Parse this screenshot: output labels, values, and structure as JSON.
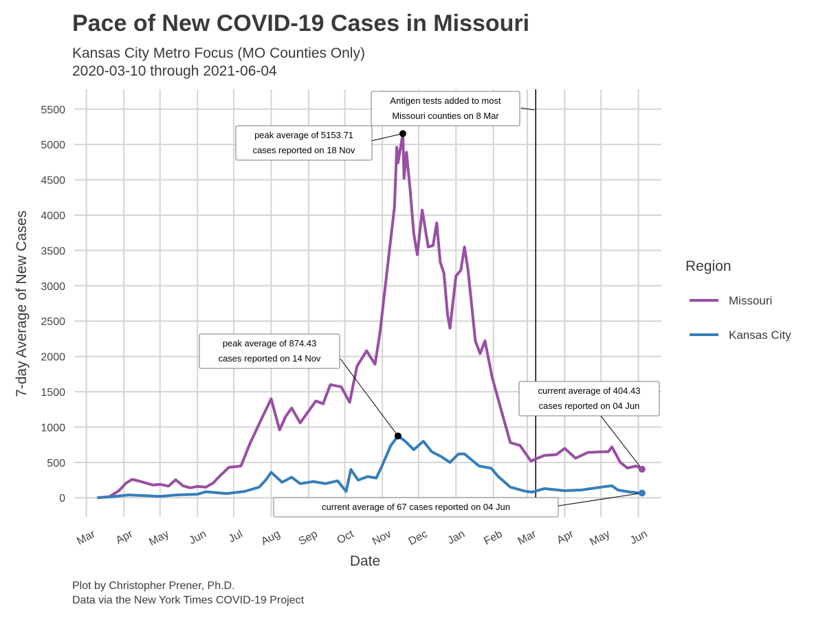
{
  "title": "Pace of New COVID-19 Cases in Missouri",
  "subtitle_1": "Kansas City Metro Focus (MO Counties Only)",
  "subtitle_2": "2020-03-10 through 2021-06-04",
  "caption_1": "Plot by Christopher Prener, Ph.D.",
  "caption_2": "Data via the New York Times COVID-19 Project",
  "colors": {
    "missouri": "#984ea3",
    "kansas_city": "#377eb8"
  },
  "chart_data": {
    "type": "line",
    "title": "Pace of New COVID-19 Cases in Missouri",
    "xlabel": "Date",
    "ylabel": "7-day Average of New Cases",
    "ylim": [
      -270,
      5780
    ],
    "xlim": [
      "2020-02-20",
      "2021-06-20"
    ],
    "grid": true,
    "legend_position": "right",
    "legend_title": "Region",
    "y_ticks": [
      0,
      500,
      1000,
      1500,
      2000,
      2500,
      3000,
      3500,
      4000,
      4500,
      5000,
      5500
    ],
    "x_ticks": [
      {
        "date": "2020-03-01",
        "label": "Mar"
      },
      {
        "date": "2020-04-01",
        "label": "Apr"
      },
      {
        "date": "2020-05-01",
        "label": "May"
      },
      {
        "date": "2020-06-01",
        "label": "Jun"
      },
      {
        "date": "2020-07-01",
        "label": "Jul"
      },
      {
        "date": "2020-08-01",
        "label": "Aug"
      },
      {
        "date": "2020-09-01",
        "label": "Sep"
      },
      {
        "date": "2020-10-01",
        "label": "Oct"
      },
      {
        "date": "2020-11-01",
        "label": "Nov"
      },
      {
        "date": "2020-12-01",
        "label": "Dec"
      },
      {
        "date": "2021-01-01",
        "label": "Jan"
      },
      {
        "date": "2021-02-01",
        "label": "Feb"
      },
      {
        "date": "2021-03-01",
        "label": "Mar"
      },
      {
        "date": "2021-04-01",
        "label": "Apr"
      },
      {
        "date": "2021-05-01",
        "label": "May"
      },
      {
        "date": "2021-06-01",
        "label": "Jun"
      }
    ],
    "series": [
      {
        "name": "Missouri",
        "key": "missouri",
        "points": [
          [
            "2020-03-10",
            0
          ],
          [
            "2020-03-20",
            15
          ],
          [
            "2020-03-28",
            100
          ],
          [
            "2020-04-03",
            210
          ],
          [
            "2020-04-08",
            260
          ],
          [
            "2020-04-15",
            230
          ],
          [
            "2020-04-25",
            180
          ],
          [
            "2020-05-01",
            190
          ],
          [
            "2020-05-08",
            165
          ],
          [
            "2020-05-14",
            255
          ],
          [
            "2020-05-20",
            170
          ],
          [
            "2020-05-26",
            140
          ],
          [
            "2020-06-01",
            160
          ],
          [
            "2020-06-08",
            150
          ],
          [
            "2020-06-14",
            210
          ],
          [
            "2020-06-19",
            300
          ],
          [
            "2020-06-27",
            430
          ],
          [
            "2020-07-07",
            450
          ],
          [
            "2020-07-14",
            750
          ],
          [
            "2020-07-23",
            1080
          ],
          [
            "2020-08-01",
            1400
          ],
          [
            "2020-08-08",
            960
          ],
          [
            "2020-08-13",
            1150
          ],
          [
            "2020-08-18",
            1270
          ],
          [
            "2020-08-25",
            1060
          ],
          [
            "2020-09-07",
            1370
          ],
          [
            "2020-09-13",
            1330
          ],
          [
            "2020-09-19",
            1600
          ],
          [
            "2020-09-28",
            1570
          ],
          [
            "2020-10-05",
            1350
          ],
          [
            "2020-10-11",
            1860
          ],
          [
            "2020-10-19",
            2080
          ],
          [
            "2020-10-26",
            1890
          ],
          [
            "2020-10-30",
            2330
          ],
          [
            "2020-11-06",
            3370
          ],
          [
            "2020-11-11",
            4110
          ],
          [
            "2020-11-13",
            4960
          ],
          [
            "2020-11-14",
            4740
          ],
          [
            "2020-11-18",
            5153.71
          ],
          [
            "2020-11-19",
            4520
          ],
          [
            "2020-11-21",
            4890
          ],
          [
            "2020-11-24",
            4370
          ],
          [
            "2020-11-27",
            3740
          ],
          [
            "2020-11-30",
            3440
          ],
          [
            "2020-12-04",
            4070
          ],
          [
            "2020-12-09",
            3550
          ],
          [
            "2020-12-13",
            3570
          ],
          [
            "2020-12-16",
            3890
          ],
          [
            "2020-12-19",
            3330
          ],
          [
            "2020-12-22",
            3180
          ],
          [
            "2020-12-25",
            2590
          ],
          [
            "2020-12-27",
            2400
          ],
          [
            "2021-01-01",
            3140
          ],
          [
            "2021-01-05",
            3220
          ],
          [
            "2021-01-08",
            3550
          ],
          [
            "2021-01-11",
            3220
          ],
          [
            "2021-01-17",
            2220
          ],
          [
            "2021-01-21",
            2040
          ],
          [
            "2021-01-25",
            2220
          ],
          [
            "2021-01-31",
            1700
          ],
          [
            "2021-02-06",
            1330
          ],
          [
            "2021-02-12",
            960
          ],
          [
            "2021-02-15",
            780
          ],
          [
            "2021-02-23",
            740
          ],
          [
            "2021-03-04",
            520
          ],
          [
            "2021-03-15",
            600
          ],
          [
            "2021-03-25",
            610
          ],
          [
            "2021-04-01",
            700
          ],
          [
            "2021-04-10",
            560
          ],
          [
            "2021-04-20",
            640
          ],
          [
            "2021-05-01",
            650
          ],
          [
            "2021-05-07",
            650
          ],
          [
            "2021-05-10",
            720
          ],
          [
            "2021-05-17",
            500
          ],
          [
            "2021-05-23",
            420
          ],
          [
            "2021-05-30",
            450
          ],
          [
            "2021-06-04",
            404.43
          ]
        ]
      },
      {
        "name": "Kansas City",
        "key": "kansas_city",
        "points": [
          [
            "2020-03-10",
            0
          ],
          [
            "2020-03-25",
            20
          ],
          [
            "2020-04-05",
            40
          ],
          [
            "2020-04-20",
            30
          ],
          [
            "2020-05-01",
            20
          ],
          [
            "2020-05-15",
            40
          ],
          [
            "2020-06-01",
            50
          ],
          [
            "2020-06-08",
            85
          ],
          [
            "2020-06-25",
            60
          ],
          [
            "2020-07-10",
            90
          ],
          [
            "2020-07-22",
            150
          ],
          [
            "2020-07-28",
            260
          ],
          [
            "2020-08-01",
            360
          ],
          [
            "2020-08-10",
            220
          ],
          [
            "2020-08-18",
            290
          ],
          [
            "2020-08-25",
            200
          ],
          [
            "2020-09-05",
            230
          ],
          [
            "2020-09-15",
            200
          ],
          [
            "2020-09-25",
            240
          ],
          [
            "2020-10-02",
            90
          ],
          [
            "2020-10-06",
            400
          ],
          [
            "2020-10-12",
            250
          ],
          [
            "2020-10-20",
            300
          ],
          [
            "2020-10-27",
            280
          ],
          [
            "2020-11-01",
            460
          ],
          [
            "2020-11-08",
            740
          ],
          [
            "2020-11-14",
            874.43
          ],
          [
            "2020-11-20",
            800
          ],
          [
            "2020-11-27",
            680
          ],
          [
            "2020-12-05",
            800
          ],
          [
            "2020-12-12",
            650
          ],
          [
            "2020-12-20",
            580
          ],
          [
            "2020-12-27",
            500
          ],
          [
            "2021-01-03",
            620
          ],
          [
            "2021-01-08",
            620
          ],
          [
            "2021-01-20",
            450
          ],
          [
            "2021-01-30",
            420
          ],
          [
            "2021-02-05",
            300
          ],
          [
            "2021-02-15",
            150
          ],
          [
            "2021-02-28",
            90
          ],
          [
            "2021-03-05",
            80
          ],
          [
            "2021-03-15",
            130
          ],
          [
            "2021-04-01",
            100
          ],
          [
            "2021-04-15",
            110
          ],
          [
            "2021-05-05",
            160
          ],
          [
            "2021-05-10",
            170
          ],
          [
            "2021-05-15",
            110
          ],
          [
            "2021-05-25",
            80
          ],
          [
            "2021-06-04",
            67
          ]
        ]
      }
    ],
    "vline": {
      "date": "2021-03-08"
    },
    "annotations": {
      "antigen": [
        "Antigen tests added to most",
        "Missouri counties on 8 Mar"
      ],
      "mo_peak": [
        "peak average of 5153.71",
        "cases reported on 18 Nov"
      ],
      "kc_peak": [
        "peak average of 874.43",
        "cases reported on 14 Nov"
      ],
      "mo_current": [
        "current average of 404.43",
        "cases reported on 04 Jun"
      ],
      "kc_current": [
        "current average of 67 cases reported on 04 Jun"
      ]
    }
  }
}
